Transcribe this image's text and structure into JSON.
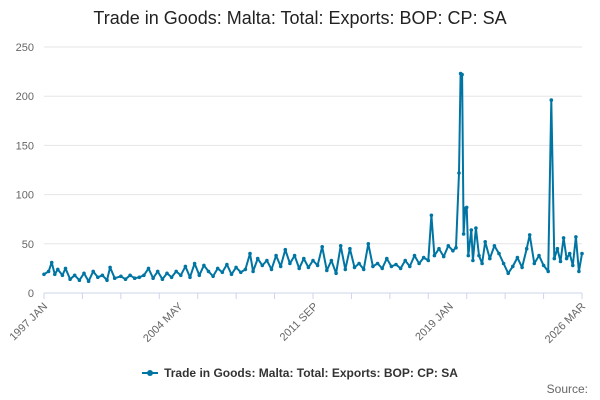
{
  "colors": {
    "series": "#0075A3",
    "grid": "#e6e6e6",
    "axis": "#ccd6eb"
  },
  "credit": "Source:",
  "chart_data": {
    "type": "line",
    "title": "Trade in Goods: Malta: Total: Exports: BOP: CP: SA",
    "xlabel": "",
    "ylabel": "",
    "ylim": [
      0,
      250
    ],
    "yticks": [
      0,
      50,
      100,
      150,
      200,
      250
    ],
    "xlim": [
      "1997-01",
      "2026-03"
    ],
    "xtick_labels": [
      {
        "date": "1997-01",
        "label": "1997 JAN"
      },
      {
        "date": "2004-05",
        "label": "2004 MAY"
      },
      {
        "date": "2011-09",
        "label": "2011 SEP"
      },
      {
        "date": "2019-01",
        "label": "2019 JAN"
      },
      {
        "date": "2026-03",
        "label": "2026 MAR"
      }
    ],
    "grid": true,
    "legend": "bottom",
    "series": [
      {
        "name": "Trade in Goods: Malta: Total: Exports: BOP: CP: SA",
        "points": [
          [
            "1997-01",
            19
          ],
          [
            "1997-04",
            22
          ],
          [
            "1997-06",
            31
          ],
          [
            "1997-08",
            19
          ],
          [
            "1997-10",
            24
          ],
          [
            "1998-01",
            18
          ],
          [
            "1998-03",
            25
          ],
          [
            "1998-06",
            14
          ],
          [
            "1998-09",
            18
          ],
          [
            "1998-12",
            13
          ],
          [
            "1999-03",
            20
          ],
          [
            "1999-06",
            12
          ],
          [
            "1999-09",
            22
          ],
          [
            "1999-12",
            16
          ],
          [
            "2000-03",
            18
          ],
          [
            "2000-06",
            13
          ],
          [
            "2000-08",
            26
          ],
          [
            "2000-11",
            15
          ],
          [
            "2001-03",
            17
          ],
          [
            "2001-06",
            14
          ],
          [
            "2001-09",
            18
          ],
          [
            "2001-12",
            15
          ],
          [
            "2002-03",
            16
          ],
          [
            "2002-06",
            18
          ],
          [
            "2002-09",
            25
          ],
          [
            "2002-12",
            15
          ],
          [
            "2003-03",
            22
          ],
          [
            "2003-06",
            14
          ],
          [
            "2003-09",
            20
          ],
          [
            "2003-12",
            16
          ],
          [
            "2004-03",
            22
          ],
          [
            "2004-06",
            18
          ],
          [
            "2004-09",
            27
          ],
          [
            "2004-12",
            16
          ],
          [
            "2005-03",
            30
          ],
          [
            "2005-06",
            18
          ],
          [
            "2005-09",
            28
          ],
          [
            "2005-12",
            22
          ],
          [
            "2006-03",
            17
          ],
          [
            "2006-06",
            25
          ],
          [
            "2006-09",
            21
          ],
          [
            "2006-12",
            29
          ],
          [
            "2007-03",
            19
          ],
          [
            "2007-06",
            26
          ],
          [
            "2007-09",
            21
          ],
          [
            "2007-12",
            24
          ],
          [
            "2008-03",
            40
          ],
          [
            "2008-05",
            22
          ],
          [
            "2008-08",
            35
          ],
          [
            "2008-11",
            28
          ],
          [
            "2009-02",
            33
          ],
          [
            "2009-05",
            24
          ],
          [
            "2009-08",
            38
          ],
          [
            "2009-11",
            27
          ],
          [
            "2010-02",
            44
          ],
          [
            "2010-05",
            30
          ],
          [
            "2010-08",
            38
          ],
          [
            "2010-11",
            25
          ],
          [
            "2011-02",
            35
          ],
          [
            "2011-05",
            26
          ],
          [
            "2011-08",
            33
          ],
          [
            "2011-11",
            28
          ],
          [
            "2012-02",
            47
          ],
          [
            "2012-05",
            23
          ],
          [
            "2012-08",
            33
          ],
          [
            "2012-11",
            20
          ],
          [
            "2013-02",
            48
          ],
          [
            "2013-05",
            24
          ],
          [
            "2013-08",
            45
          ],
          [
            "2013-11",
            26
          ],
          [
            "2014-02",
            30
          ],
          [
            "2014-05",
            24
          ],
          [
            "2014-08",
            50
          ],
          [
            "2014-11",
            27
          ],
          [
            "2015-02",
            30
          ],
          [
            "2015-05",
            25
          ],
          [
            "2015-08",
            35
          ],
          [
            "2015-11",
            27
          ],
          [
            "2016-02",
            29
          ],
          [
            "2016-05",
            25
          ],
          [
            "2016-08",
            33
          ],
          [
            "2016-11",
            27
          ],
          [
            "2017-02",
            38
          ],
          [
            "2017-05",
            30
          ],
          [
            "2017-08",
            36
          ],
          [
            "2017-11",
            33
          ],
          [
            "2018-01",
            79
          ],
          [
            "2018-03",
            38
          ],
          [
            "2018-06",
            45
          ],
          [
            "2018-09",
            37
          ],
          [
            "2018-12",
            48
          ],
          [
            "2019-03",
            43
          ],
          [
            "2019-05",
            46
          ],
          [
            "2019-07",
            122
          ],
          [
            "2019-08",
            223
          ],
          [
            "2019-09",
            222
          ],
          [
            "2019-10",
            60
          ],
          [
            "2019-11",
            86
          ],
          [
            "2019-12",
            87
          ],
          [
            "2020-01",
            38
          ],
          [
            "2020-03",
            64
          ],
          [
            "2020-04",
            33
          ],
          [
            "2020-06",
            66
          ],
          [
            "2020-08",
            38
          ],
          [
            "2020-10",
            30
          ],
          [
            "2020-12",
            52
          ],
          [
            "2021-03",
            35
          ],
          [
            "2021-06",
            48
          ],
          [
            "2021-09",
            40
          ],
          [
            "2021-12",
            30
          ],
          [
            "2022-03",
            20
          ],
          [
            "2022-06",
            27
          ],
          [
            "2022-09",
            36
          ],
          [
            "2022-12",
            26
          ],
          [
            "2023-03",
            45
          ],
          [
            "2023-05",
            59
          ],
          [
            "2023-08",
            30
          ],
          [
            "2023-11",
            38
          ],
          [
            "2024-02",
            28
          ],
          [
            "2024-05",
            22
          ],
          [
            "2024-07",
            196
          ],
          [
            "2024-09",
            35
          ],
          [
            "2024-11",
            45
          ],
          [
            "2025-01",
            32
          ],
          [
            "2025-03",
            56
          ],
          [
            "2025-05",
            35
          ],
          [
            "2025-07",
            40
          ],
          [
            "2025-09",
            28
          ],
          [
            "2025-11",
            57
          ],
          [
            "2026-01",
            22
          ],
          [
            "2026-03",
            40
          ]
        ]
      }
    ]
  }
}
